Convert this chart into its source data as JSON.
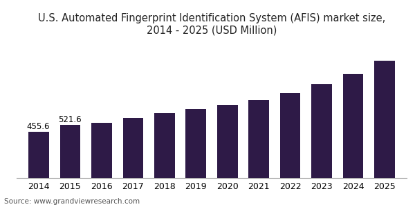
{
  "title": "U.S. Automated Fingerprint Identification System (AFIS) market size,\n2014 - 2025 (USD Million)",
  "years": [
    2014,
    2015,
    2016,
    2017,
    2018,
    2019,
    2020,
    2021,
    2022,
    2023,
    2024,
    2025
  ],
  "values": [
    455.6,
    521.6,
    548.0,
    590.0,
    640.0,
    685.0,
    720.0,
    770.0,
    840.0,
    930.0,
    1030.0,
    1160.0
  ],
  "bar_color": "#2e1a47",
  "label_values": [
    "455.6",
    "521.6"
  ],
  "source_text": "Source: www.grandviewresearch.com",
  "title_fontsize": 10.5,
  "tick_fontsize": 9,
  "label_fontsize": 8.5,
  "source_fontsize": 7.5,
  "ylim": [
    0,
    1350
  ],
  "background_color": "#ffffff"
}
